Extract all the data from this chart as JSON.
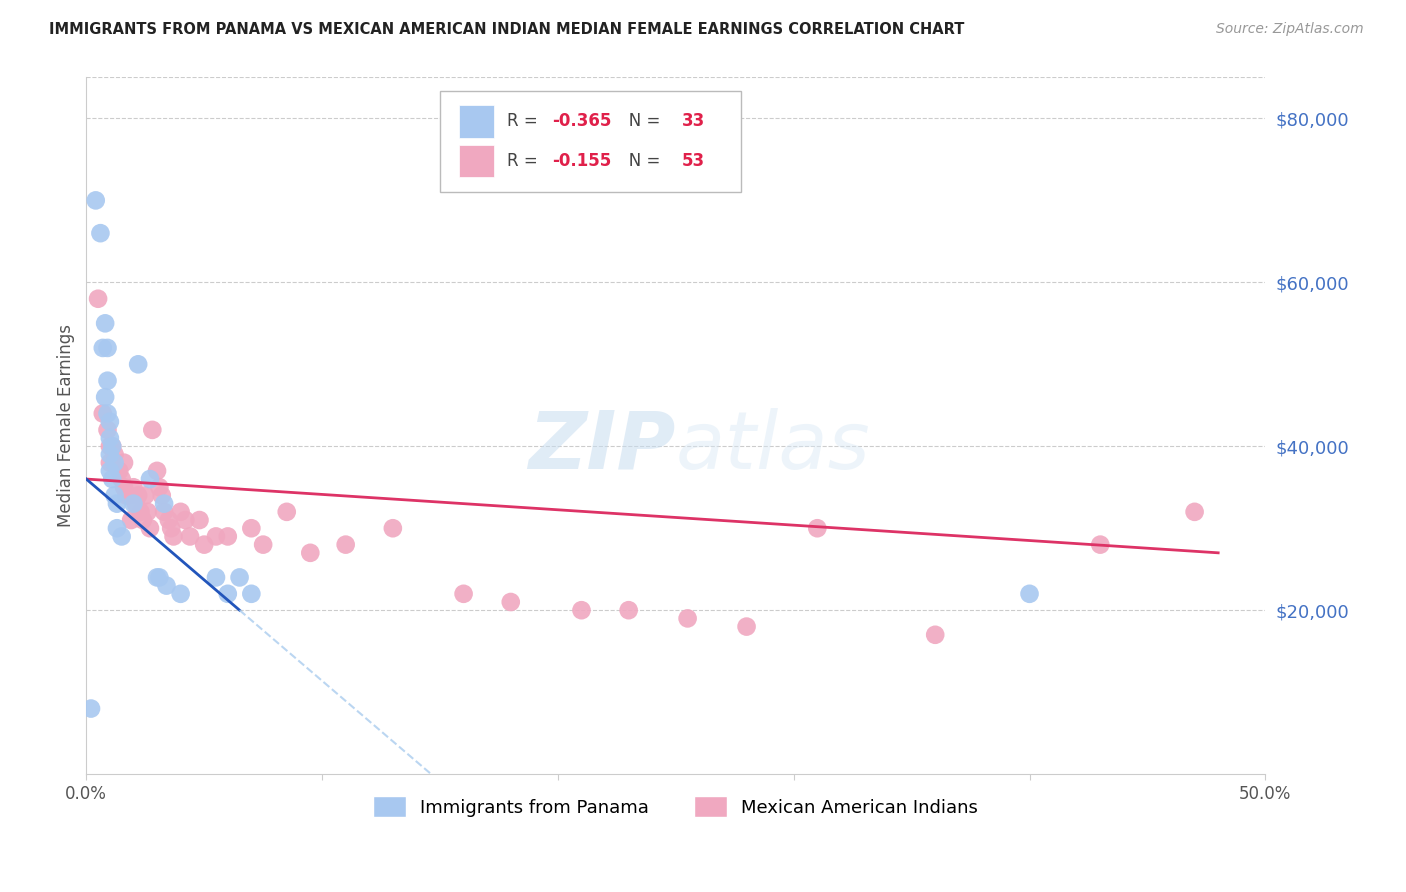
{
  "title": "IMMIGRANTS FROM PANAMA VS MEXICAN AMERICAN INDIAN MEDIAN FEMALE EARNINGS CORRELATION CHART",
  "source": "Source: ZipAtlas.com",
  "ylabel": "Median Female Earnings",
  "blue_label": "Immigrants from Panama",
  "pink_label": "Mexican American Indians",
  "blue_R": "-0.365",
  "blue_N": "33",
  "pink_R": "-0.155",
  "pink_N": "53",
  "blue_color": "#a8c8f0",
  "pink_color": "#f0a8c0",
  "trend_blue_color": "#2255bb",
  "trend_pink_color": "#dd3366",
  "dashed_color": "#aaccee",
  "watermark_color": "#cce0f5",
  "title_color": "#222222",
  "source_color": "#999999",
  "ylabel_color": "#555555",
  "tick_color": "#555555",
  "right_tick_color": "#4472C4",
  "grid_color": "#cccccc",
  "legend_edge_color": "#bbbbbb",
  "xlim": [
    0.0,
    0.5
  ],
  "ylim": [
    0,
    85000
  ],
  "ytick_positions": [
    20000,
    40000,
    60000,
    80000
  ],
  "ytick_labels": [
    "$20,000",
    "$40,000",
    "$60,000",
    "$80,000"
  ],
  "xtick_vals": [
    0.0,
    0.1,
    0.2,
    0.3,
    0.4,
    0.5
  ],
  "xtick_labels": [
    "0.0%",
    "",
    "",
    "",
    "",
    "50.0%"
  ],
  "watermark_text": "ZIPatlas",
  "blue_points_x": [
    0.002,
    0.004,
    0.006,
    0.007,
    0.008,
    0.008,
    0.009,
    0.009,
    0.009,
    0.01,
    0.01,
    0.01,
    0.01,
    0.011,
    0.011,
    0.012,
    0.012,
    0.013,
    0.013,
    0.015,
    0.02,
    0.022,
    0.027,
    0.03,
    0.031,
    0.033,
    0.034,
    0.04,
    0.055,
    0.06,
    0.065,
    0.07,
    0.4
  ],
  "blue_points_y": [
    8000,
    70000,
    66000,
    52000,
    55000,
    46000,
    52000,
    48000,
    44000,
    43000,
    41000,
    39000,
    37000,
    40000,
    36000,
    34000,
    38000,
    33000,
    30000,
    29000,
    33000,
    50000,
    36000,
    24000,
    24000,
    33000,
    23000,
    22000,
    24000,
    22000,
    24000,
    22000,
    22000
  ],
  "pink_points_x": [
    0.005,
    0.007,
    0.009,
    0.01,
    0.01,
    0.011,
    0.012,
    0.014,
    0.015,
    0.016,
    0.016,
    0.017,
    0.018,
    0.019,
    0.02,
    0.021,
    0.022,
    0.023,
    0.024,
    0.025,
    0.026,
    0.027,
    0.028,
    0.03,
    0.031,
    0.032,
    0.033,
    0.035,
    0.036,
    0.037,
    0.04,
    0.042,
    0.044,
    0.048,
    0.05,
    0.055,
    0.06,
    0.07,
    0.075,
    0.085,
    0.095,
    0.11,
    0.13,
    0.16,
    0.18,
    0.21,
    0.23,
    0.255,
    0.28,
    0.31,
    0.36,
    0.43,
    0.47
  ],
  "pink_points_y": [
    58000,
    44000,
    42000,
    40000,
    38000,
    40000,
    39000,
    37000,
    36000,
    38000,
    35000,
    34000,
    34000,
    31000,
    35000,
    33000,
    34000,
    32000,
    31000,
    34000,
    32000,
    30000,
    42000,
    37000,
    35000,
    34000,
    32000,
    31000,
    30000,
    29000,
    32000,
    31000,
    29000,
    31000,
    28000,
    29000,
    29000,
    30000,
    28000,
    32000,
    27000,
    28000,
    30000,
    22000,
    21000,
    20000,
    20000,
    19000,
    18000,
    30000,
    17000,
    28000,
    32000
  ]
}
